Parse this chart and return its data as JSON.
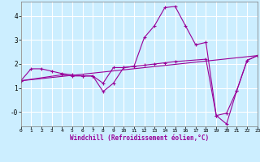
{
  "title": "",
  "xlabel": "Windchill (Refroidissement éolien,°C)",
  "ylabel": "",
  "background_color": "#cceeff",
  "line_color": "#990099",
  "grid_color": "#ffffff",
  "xlim": [
    0,
    23
  ],
  "ylim": [
    -0.6,
    4.6
  ],
  "yticks": [
    0,
    1,
    2,
    3,
    4
  ],
  "ytick_labels": [
    "-0",
    "1",
    "2",
    "3",
    "4"
  ],
  "xticks": [
    0,
    1,
    2,
    3,
    4,
    5,
    6,
    7,
    8,
    9,
    10,
    11,
    12,
    13,
    14,
    15,
    16,
    17,
    18,
    19,
    20,
    21,
    22,
    23
  ],
  "series1_x": [
    0,
    1,
    2,
    3,
    4,
    5,
    6,
    7,
    8,
    9,
    10,
    11,
    12,
    13,
    14,
    15,
    16,
    17,
    18,
    19,
    20,
    21,
    22,
    23
  ],
  "series1_y": [
    1.3,
    1.8,
    1.8,
    1.7,
    1.6,
    1.55,
    1.5,
    1.5,
    0.85,
    1.2,
    1.85,
    1.9,
    3.1,
    3.6,
    4.35,
    4.4,
    3.6,
    2.8,
    2.9,
    -0.15,
    -0.05,
    0.9,
    2.15,
    2.35
  ],
  "series2_x": [
    0,
    23
  ],
  "series2_y": [
    1.3,
    2.35
  ],
  "series3_x": [
    0,
    4,
    5,
    6,
    7,
    8,
    9,
    10,
    11,
    12,
    13,
    14,
    15,
    18,
    19,
    20,
    21,
    22,
    23
  ],
  "series3_y": [
    1.3,
    1.55,
    1.5,
    1.5,
    1.5,
    1.2,
    1.85,
    1.85,
    1.9,
    1.95,
    2.0,
    2.05,
    2.1,
    2.2,
    -0.15,
    -0.5,
    0.9,
    2.15,
    2.35
  ]
}
